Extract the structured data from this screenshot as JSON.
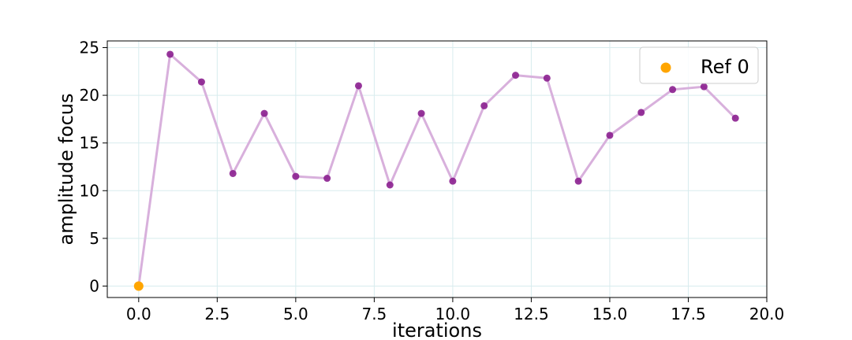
{
  "chart_data": {
    "type": "line",
    "xlabel": "iterations",
    "ylabel": "amplitude focus",
    "xlim": [
      -1,
      20
    ],
    "ylim": [
      -1.2,
      25.7
    ],
    "xticks": [
      0.0,
      2.5,
      5.0,
      7.5,
      10.0,
      12.5,
      15.0,
      17.5,
      20.0
    ],
    "xtick_labels": [
      "0.0",
      "2.5",
      "5.0",
      "7.5",
      "10.0",
      "12.5",
      "15.0",
      "17.5",
      "20.0"
    ],
    "yticks": [
      0,
      5,
      10,
      15,
      20,
      25
    ],
    "ytick_labels": [
      "0",
      "5",
      "10",
      "15",
      "20",
      "25"
    ],
    "grid": true,
    "legend_position": "top-right",
    "series": [
      {
        "values_x": [
          0,
          1,
          2,
          3,
          4,
          5,
          6,
          7,
          8,
          9,
          10,
          11,
          12,
          13,
          14,
          15,
          16,
          17,
          18,
          19
        ],
        "values_y": [
          0.0,
          24.3,
          21.4,
          11.8,
          18.1,
          11.5,
          11.3,
          21.0,
          10.6,
          18.1,
          11.0,
          18.9,
          22.1,
          21.8,
          11.0,
          15.8,
          18.2,
          20.6,
          20.9,
          17.6
        ]
      },
      {
        "name": "Ref 0",
        "values_x": [
          0
        ],
        "values_y": [
          0.0
        ]
      }
    ],
    "colors": {
      "line": "#d8b0dc",
      "points": "#8b1f8f",
      "ref": "#ffa500",
      "grid": "#d8ecee"
    },
    "legend": [
      {
        "label": "Ref 0",
        "marker": "circle"
      }
    ]
  }
}
